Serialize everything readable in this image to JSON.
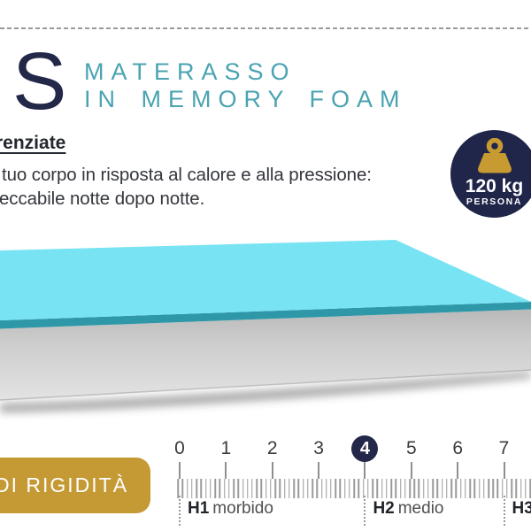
{
  "header": {
    "logo_letter": "S",
    "title_line1": "MATERASSO",
    "title_line2": "IN MEMORY FOAM"
  },
  "intro": {
    "heading_fragment": "renziate",
    "body_line1": "tuo corpo in risposta al calore e alla pressione:",
    "body_line2": "eccabile notte dopo notte."
  },
  "weight_badge": {
    "icon": "weight-icon",
    "value": "120 kg",
    "label": "PERSONA"
  },
  "rigidity_button": {
    "label": "DI RIGIDITÀ"
  },
  "ruler": {
    "numbers": [
      "0",
      "1",
      "2",
      "3",
      "4",
      "5",
      "6",
      "7"
    ],
    "highlighted_number": "4",
    "sections": [
      {
        "code": "H1",
        "name": "morbido",
        "at_number": 0
      },
      {
        "code": "H2",
        "name": "medio",
        "at_number": 4
      },
      {
        "code": "H3",
        "name": "",
        "at_number": 7
      }
    ]
  },
  "colors": {
    "navy": "#20254A",
    "teal_text": "#4AA3B2",
    "gold": "#C59A35",
    "icon_gold": "#C79B32",
    "mattress_top": "#78E3F2",
    "mattress_edge": "#2E98A9",
    "mattress_side_light": "#e3e3e3",
    "mattress_side_dark": "#b9b9b9",
    "text_dark": "#24272E",
    "tick_gray": "#8f8f8f"
  }
}
